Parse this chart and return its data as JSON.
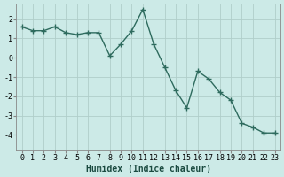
{
  "x": [
    0,
    1,
    2,
    3,
    4,
    5,
    6,
    7,
    8,
    9,
    10,
    11,
    12,
    13,
    14,
    15,
    16,
    17,
    18,
    19,
    20,
    21,
    22,
    23
  ],
  "y": [
    1.6,
    1.4,
    1.4,
    1.6,
    1.3,
    1.2,
    1.3,
    1.3,
    0.1,
    0.7,
    1.4,
    2.5,
    0.7,
    -0.5,
    -1.7,
    -2.6,
    -0.7,
    -1.1,
    -1.8,
    -2.2,
    -3.4,
    -3.6,
    -3.9,
    -3.9
  ],
  "line_color": "#2e6b5e",
  "marker": "+",
  "marker_size": 4,
  "linewidth": 1.0,
  "bg_color": "#cceae7",
  "grid_color": "#b0ceca",
  "xlabel": "Humidex (Indice chaleur)",
  "xlabel_fontsize": 7,
  "tick_fontsize": 6,
  "ylim": [
    -4.8,
    2.8
  ],
  "xlim": [
    -0.5,
    23.5
  ],
  "yticks": [
    -4,
    -3,
    -2,
    -1,
    0,
    1,
    2
  ],
  "xticks": [
    0,
    1,
    2,
    3,
    4,
    5,
    6,
    7,
    8,
    9,
    10,
    11,
    12,
    13,
    14,
    15,
    16,
    17,
    18,
    19,
    20,
    21,
    22,
    23
  ]
}
